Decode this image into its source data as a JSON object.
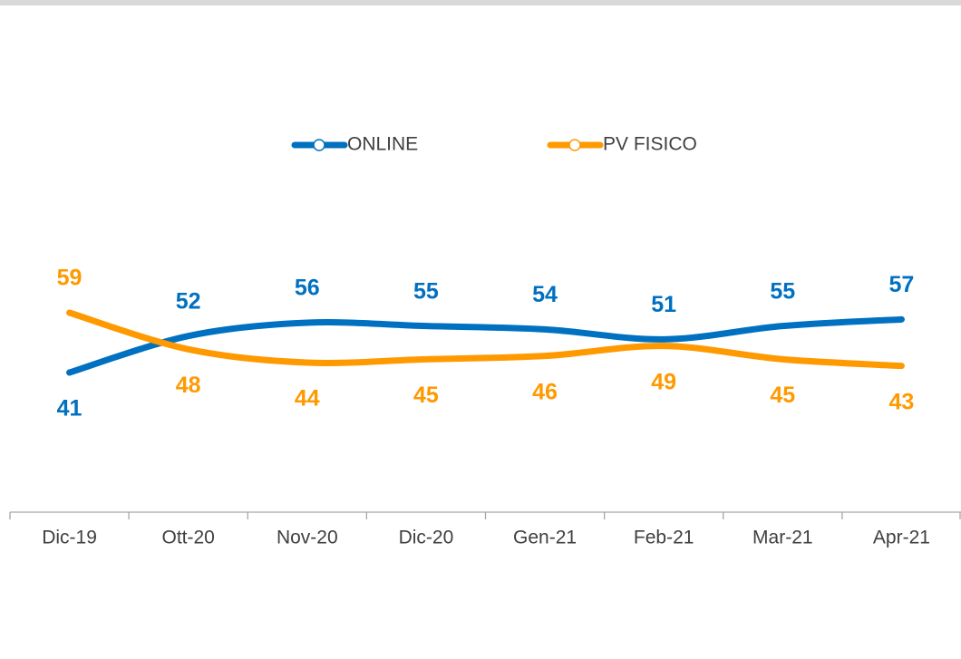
{
  "chart_data": {
    "type": "line",
    "categories": [
      "Dic-19",
      "Ott-20",
      "Nov-20",
      "Dic-20",
      "Gen-21",
      "Feb-21",
      "Mar-21",
      "Apr-21"
    ],
    "series": [
      {
        "name": "ONLINE",
        "color": "#0070c0",
        "values": [
          41,
          52,
          56,
          55,
          54,
          51,
          55,
          57
        ]
      },
      {
        "name": "PV FISICO",
        "color": "#ff9900",
        "values": [
          59,
          48,
          44,
          45,
          46,
          49,
          45,
          43
        ]
      }
    ],
    "legend": "top"
  }
}
